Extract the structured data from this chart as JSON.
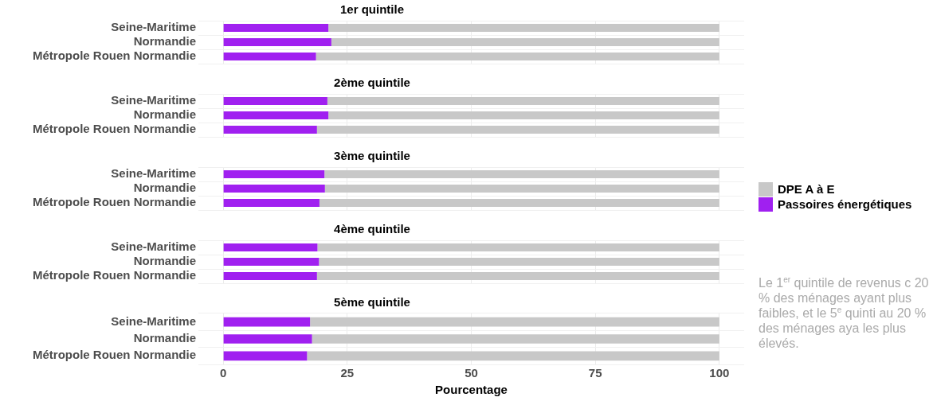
{
  "chart_data": [
    {
      "type": "bar",
      "orientation": "horizontal",
      "stacked": true,
      "title": "1er quintile",
      "categories": [
        "Seine-Maritime",
        "Normandie",
        "Métropole Rouen Normandie"
      ],
      "series": [
        {
          "name": "Passoires énergétiques",
          "color": "#a020f0",
          "values": [
            21.2,
            21.8,
            18.7
          ]
        },
        {
          "name": "DPE A à E",
          "color": "#c8c8c8",
          "values": [
            78.8,
            78.2,
            81.3
          ]
        }
      ],
      "xlim": [
        -5,
        105
      ],
      "xticks": [
        0,
        25,
        50,
        75,
        100
      ],
      "tick_labels": "y",
      "grid": true,
      "legend": "right"
    },
    {
      "type": "bar",
      "orientation": "horizontal",
      "stacked": true,
      "title": "2ème quintile",
      "categories": [
        "Seine-Maritime",
        "Normandie",
        "Métropole Rouen Normandie"
      ],
      "series": [
        {
          "color": "#a020f0",
          "values": [
            21.0,
            21.2,
            18.9
          ]
        },
        {
          "color": "#c8c8c8",
          "values": [
            79.0,
            78.8,
            81.1
          ]
        }
      ],
      "xlim": [
        -5,
        105
      ],
      "xticks": [
        0,
        25,
        50,
        75,
        100
      ],
      "tick_labels": "y",
      "grid": true
    },
    {
      "type": "bar",
      "orientation": "horizontal",
      "stacked": true,
      "title": "3ème quintile",
      "categories": [
        "Seine-Maritime",
        "Normandie",
        "Métropole Rouen Normandie"
      ],
      "series": [
        {
          "color": "#a020f0",
          "values": [
            20.4,
            20.5,
            19.4
          ]
        },
        {
          "color": "#c8c8c8",
          "values": [
            79.6,
            79.5,
            80.6
          ]
        }
      ],
      "xlim": [
        -5,
        105
      ],
      "xticks": [
        0,
        25,
        50,
        75,
        100
      ],
      "tick_labels": "y",
      "grid": true
    },
    {
      "type": "bar",
      "orientation": "horizontal",
      "stacked": true,
      "title": "4ème quintile",
      "categories": [
        "Seine-Maritime",
        "Normandie",
        "Métropole Rouen Normandie"
      ],
      "series": [
        {
          "color": "#a020f0",
          "values": [
            19.0,
            19.3,
            18.9
          ]
        },
        {
          "color": "#c8c8c8",
          "values": [
            81.0,
            80.7,
            81.1
          ]
        }
      ],
      "xlim": [
        -5,
        105
      ],
      "xticks": [
        0,
        25,
        50,
        75,
        100
      ],
      "tick_labels": "y",
      "grid": true
    },
    {
      "type": "bar",
      "orientation": "horizontal",
      "stacked": true,
      "title": "5ème quintile",
      "categories": [
        "Seine-Maritime",
        "Normandie",
        "Métropole Rouen Normandie"
      ],
      "series": [
        {
          "color": "#a020f0",
          "values": [
            17.5,
            17.9,
            16.9
          ]
        },
        {
          "color": "#c8c8c8",
          "values": [
            82.5,
            82.1,
            83.1
          ]
        }
      ],
      "xlim": [
        -5,
        105
      ],
      "xticks": [
        0,
        25,
        50,
        75,
        100
      ],
      "xlabel": "Pourcentage",
      "grid": true,
      "annotations": [
        "Le 1$^{er}$ quintile de revenus c 20 % des ménages ayant plus faibles, et le 5$^{e}$ quinti au 20 % des ménages aya les plus élevés."
      ]
    }
  ]
}
